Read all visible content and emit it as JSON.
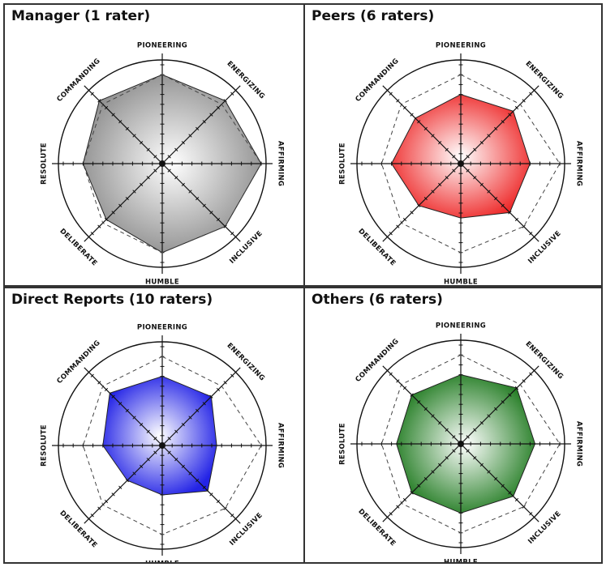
{
  "axes": [
    "PIONEERING",
    "ENERGIZING",
    "AFFIRMING",
    "INCLUSIVE",
    "HUMBLE",
    "DELIBERATE",
    "RESOLUTE",
    "COMMANDING"
  ],
  "chart_data": [
    {
      "type": "radar",
      "title": "Manager (1 rater)",
      "categories": [
        "PIONEERING",
        "ENERGIZING",
        "AFFIRMING",
        "INCLUSIVE",
        "HUMBLE",
        "DELIBERATE",
        "RESOLUTE",
        "COMMANDING"
      ],
      "scale": [
        0,
        10
      ],
      "color": "#8c8c8c",
      "series": [
        {
          "values": [
            9,
            9,
            10,
            9,
            9,
            8,
            8,
            9
          ]
        },
        {
          "dashed": true,
          "values": [
            9,
            8.5,
            10,
            9,
            9,
            8.5,
            8,
            8.5
          ]
        }
      ]
    },
    {
      "type": "radar",
      "title": "Peers (6 raters)",
      "categories": [
        "PIONEERING",
        "ENERGIZING",
        "AFFIRMING",
        "INCLUSIVE",
        "HUMBLE",
        "DELIBERATE",
        "RESOLUTE",
        "COMMANDING"
      ],
      "scale": [
        0,
        10
      ],
      "color": "#ee2a2a",
      "series": [
        {
          "values": [
            7,
            7.5,
            7,
            7,
            5.5,
            6,
            7,
            6.5
          ]
        },
        {
          "dashed": true,
          "values": [
            9,
            8.5,
            10,
            9,
            9,
            8.5,
            8,
            8.5
          ]
        }
      ]
    },
    {
      "type": "radar",
      "title": "Direct Reports (10 raters)",
      "categories": [
        "PIONEERING",
        "ENERGIZING",
        "AFFIRMING",
        "INCLUSIVE",
        "HUMBLE",
        "DELIBERATE",
        "RESOLUTE",
        "COMMANDING"
      ],
      "scale": [
        0,
        10
      ],
      "color": "#2323e6",
      "series": [
        {
          "values": [
            7,
            7,
            5.5,
            6.5,
            5,
            5,
            6,
            7.5
          ]
        },
        {
          "dashed": true,
          "values": [
            9,
            8.5,
            10,
            9,
            9,
            8.5,
            8,
            8.5
          ]
        }
      ]
    },
    {
      "type": "radar",
      "title": "Others (6 raters)",
      "categories": [
        "PIONEERING",
        "ENERGIZING",
        "AFFIRMING",
        "INCLUSIVE",
        "HUMBLE",
        "DELIBERATE",
        "RESOLUTE",
        "COMMANDING"
      ],
      "scale": [
        0,
        10
      ],
      "color": "#1f7a1f",
      "series": [
        {
          "values": [
            7,
            8,
            7.5,
            7.5,
            7,
            7,
            6.5,
            7
          ]
        },
        {
          "dashed": true,
          "values": [
            9,
            8.5,
            10,
            9,
            9,
            8.5,
            8,
            8.5
          ]
        }
      ]
    }
  ]
}
